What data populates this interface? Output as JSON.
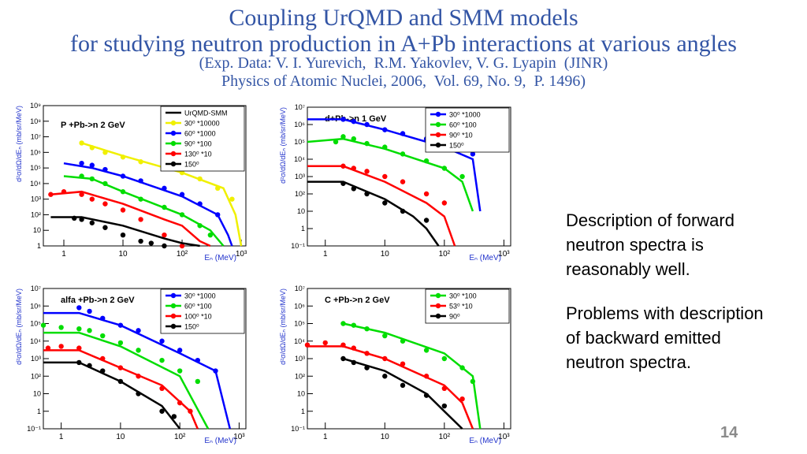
{
  "header": {
    "title": "Coupling UrQMD and SMM models",
    "subtitle": "for studying neutron production in A+Pb interactions at various angles",
    "reference_1": "(Exp. Data: V. I. Yurevich,  R.M. Yakovlev, V. G. Lyapin  (JINR)",
    "reference_2": "Physics of Atomic Nuclei, 2006,  Vol. 69, No. 9,  P. 1496)"
  },
  "chart_data": [
    {
      "type": "line",
      "annotation": "P +Pb->n  2 GeV",
      "x_label": "Eₙ (MeV)",
      "y_label": "d²σ/dΩ/dEₙ (mb/sr/MeV)",
      "log_x": true,
      "log_y": true,
      "legend": "upper right",
      "model_label": "UrQMD-SMM",
      "model_color": "#000000",
      "xlim": [
        0.45,
        1200
      ],
      "xticks": [
        1,
        10,
        {
          "value": 100,
          "label": "10²"
        },
        {
          "value": 1000,
          "label": "10³"
        }
      ],
      "ylim": [
        1,
        1000000000
      ],
      "yticks": [
        1,
        10,
        {
          "value": 100,
          "label": "10²"
        },
        {
          "value": 1000,
          "label": "10³"
        },
        {
          "value": 10000,
          "label": "10⁴"
        },
        {
          "value": 100000,
          "label": "10⁵"
        },
        {
          "value": 1000000,
          "label": "10⁶"
        },
        {
          "value": 10000000,
          "label": "10⁷"
        },
        {
          "value": 100000000,
          "label": "10⁸"
        },
        {
          "value": 1000000000,
          "label": "10⁹"
        }
      ],
      "series": [
        {
          "name": "30⁰ *10000",
          "color": "#f0f000",
          "x": [
            2,
            3,
            5,
            10,
            20,
            50,
            100,
            200,
            400,
            700
          ],
          "values": [
            4000000,
            2000000,
            1000000,
            500000,
            250000,
            100000,
            50000,
            20000,
            5000,
            1000
          ],
          "model": {
            "x": [
              2,
              10,
              100,
              500,
              800,
              1000
            ],
            "values": [
              4000000,
              600000,
              50000,
              5000,
              100,
              1
            ]
          }
        },
        {
          "name": "60⁰ *1000",
          "color": "#0000ff",
          "x": [
            2,
            3,
            5,
            10,
            20,
            50,
            100,
            200,
            400
          ],
          "values": [
            200000,
            150000,
            80000,
            30000,
            15000,
            5000,
            2000,
            500,
            100
          ],
          "model": {
            "x": [
              1,
              3,
              10,
              100,
              400,
              600,
              700
            ],
            "values": [
              200000,
              100000,
              30000,
              1500,
              100,
              5,
              1
            ]
          }
        },
        {
          "name": "90⁰ *100",
          "color": "#00dd00",
          "x": [
            2,
            3,
            5,
            10,
            20,
            50,
            100,
            200,
            300
          ],
          "values": [
            30000,
            20000,
            10000,
            3000,
            1000,
            300,
            100,
            20,
            5
          ],
          "model": {
            "x": [
              1,
              3,
              10,
              100,
              300,
              500
            ],
            "values": [
              30000,
              20000,
              3000,
              100,
              10,
              1
            ]
          }
        },
        {
          "name": "130⁰ *10",
          "color": "#ff0000",
          "x": [
            0.6,
            1,
            2,
            3,
            5,
            10,
            20,
            50,
            100
          ],
          "values": [
            2000,
            3000,
            2000,
            1000,
            500,
            200,
            50,
            5,
            1
          ],
          "model": {
            "x": [
              0.6,
              2,
              10,
              50,
              100,
              200,
              300
            ],
            "values": [
              2000,
              3000,
              500,
              50,
              20,
              2,
              1
            ]
          }
        },
        {
          "name": "150⁰",
          "color": "#000000",
          "x": [
            1.5,
            2,
            3,
            5,
            10,
            20,
            30,
            50
          ],
          "values": [
            60,
            50,
            30,
            15,
            5,
            2,
            1.5,
            1
          ],
          "model": {
            "x": [
              0.6,
              2,
              10,
              50,
              100,
              200
            ],
            "values": [
              70,
              70,
              20,
              3,
              1.5,
              1
            ]
          }
        }
      ]
    },
    {
      "type": "line",
      "annotation": "d+Pb->n  1 GeV",
      "x_label": "Eₙ (MeV)",
      "y_label": "d²σ/dΩ/dEₙ (mb/sr/MeV)",
      "log_x": true,
      "log_y": true,
      "legend": "upper right",
      "xlim": [
        0.5,
        1300
      ],
      "xticks": [
        1,
        10,
        {
          "value": 100,
          "label": "10²"
        },
        {
          "value": 1000,
          "label": "10³"
        }
      ],
      "ylim": [
        0.1,
        10000000
      ],
      "yticks": [
        {
          "value": 0.1,
          "label": "10⁻¹"
        },
        1,
        10,
        {
          "value": 100,
          "label": "10²"
        },
        {
          "value": 1000,
          "label": "10³"
        },
        {
          "value": 10000,
          "label": "10⁴"
        },
        {
          "value": 100000,
          "label": "10⁵"
        },
        {
          "value": 1000000,
          "label": "10⁶"
        },
        {
          "value": 10000000,
          "label": "10⁷"
        }
      ],
      "series": [
        {
          "name": "30⁰ *1000",
          "color": "#0000ff",
          "x": [
            2,
            3,
            5,
            10,
            20,
            50,
            100,
            200,
            300
          ],
          "values": [
            2000000,
            1500000,
            1000000,
            500000,
            300000,
            150000,
            80000,
            40000,
            20000
          ],
          "model": {
            "x": [
              0.5,
              2,
              10,
              100,
              300,
              400
            ],
            "values": [
              2000000,
              2000000,
              500000,
              50000,
              10000,
              10
            ]
          }
        },
        {
          "name": "60⁰ *100",
          "color": "#00dd00",
          "x": [
            1.5,
            2,
            3,
            5,
            10,
            20,
            50,
            100,
            200
          ],
          "values": [
            100000,
            200000,
            150000,
            80000,
            50000,
            20000,
            8000,
            3000,
            1000
          ],
          "model": {
            "x": [
              0.5,
              2,
              10,
              100,
              200,
              300
            ],
            "values": [
              100000,
              150000,
              40000,
              3000,
              500,
              10
            ]
          }
        },
        {
          "name": "90⁰ *10",
          "color": "#ff0000",
          "x": [
            2,
            3,
            5,
            10,
            20,
            50,
            100
          ],
          "values": [
            4000,
            3000,
            2000,
            1000,
            500,
            100,
            30
          ],
          "model": {
            "x": [
              0.5,
              2,
              10,
              50,
              100,
              150
            ],
            "values": [
              4000,
              4000,
              500,
              30,
              5,
              0.1
            ]
          }
        },
        {
          "name": "150⁰",
          "color": "#000000",
          "x": [
            2,
            3,
            5,
            10,
            20,
            50
          ],
          "values": [
            400,
            200,
            100,
            30,
            10,
            3
          ],
          "model": {
            "x": [
              0.5,
              2,
              10,
              30,
              50,
              80
            ],
            "values": [
              500,
              500,
              50,
              5,
              1,
              0.1
            ]
          }
        }
      ]
    },
    {
      "type": "line",
      "annotation": "alfa +Pb->n  2 GeV",
      "x_label": "Eₙ (MeV)",
      "y_label": "d²σ/dΩ/dEₙ (mb/sr/MeV)",
      "log_x": true,
      "log_y": true,
      "legend": "upper right",
      "xlim": [
        0.5,
        1300
      ],
      "xticks": [
        1,
        10,
        {
          "value": 100,
          "label": "10²"
        },
        {
          "value": 1000,
          "label": "10³"
        }
      ],
      "ylim": [
        0.1,
        10000000
      ],
      "yticks": [
        {
          "value": 0.1,
          "label": "10⁻¹"
        },
        1,
        10,
        {
          "value": 100,
          "label": "10²"
        },
        {
          "value": 1000,
          "label": "10³"
        },
        {
          "value": 10000,
          "label": "10⁴"
        },
        {
          "value": 100000,
          "label": "10⁵"
        },
        {
          "value": 1000000,
          "label": "10⁶"
        },
        {
          "value": 10000000,
          "label": "10⁷"
        }
      ],
      "series": [
        {
          "name": "30⁰ *1000",
          "color": "#0000ff",
          "x": [
            2,
            3,
            5,
            10,
            20,
            50,
            100,
            200,
            400
          ],
          "values": [
            800000,
            500000,
            200000,
            80000,
            40000,
            10000,
            3000,
            800,
            200
          ],
          "model": {
            "x": [
              0.5,
              2,
              10,
              100,
              400,
              700
            ],
            "values": [
              400000,
              400000,
              80000,
              2000,
              200,
              0.1
            ]
          }
        },
        {
          "name": "60⁰ *100",
          "color": "#00dd00",
          "x": [
            0.5,
            1,
            2,
            3,
            5,
            10,
            20,
            50,
            100,
            200
          ],
          "values": [
            80000,
            60000,
            50000,
            40000,
            20000,
            8000,
            3000,
            800,
            200,
            50
          ],
          "model": {
            "x": [
              0.5,
              2,
              10,
              100,
              300
            ],
            "values": [
              30000,
              30000,
              5000,
              100,
              0.1
            ]
          }
        },
        {
          "name": "100⁰ *10",
          "color": "#ff0000",
          "x": [
            0.6,
            1,
            2,
            5,
            10,
            20,
            50,
            100,
            150
          ],
          "values": [
            4000,
            5000,
            4000,
            1000,
            300,
            100,
            20,
            3,
            1
          ],
          "model": {
            "x": [
              0.5,
              2,
              10,
              50,
              150,
              200
            ],
            "values": [
              3000,
              3000,
              300,
              30,
              1,
              0.1
            ]
          }
        },
        {
          "name": "150⁰",
          "color": "#000000",
          "x": [
            2,
            3,
            5,
            10,
            20,
            50,
            80
          ],
          "values": [
            600,
            400,
            200,
            50,
            10,
            1,
            0.5
          ],
          "model": {
            "x": [
              0.5,
              2,
              10,
              50,
              100
            ],
            "values": [
              600,
              600,
              50,
              2,
              0.1
            ]
          }
        }
      ]
    },
    {
      "type": "line",
      "annotation": "C +Pb->n  2 GeV",
      "x_label": "Eₙ (MeV)",
      "y_label": "d²σ/dΩ/dEₙ (mb/sr/MeV)",
      "log_x": true,
      "log_y": true,
      "legend": "upper right",
      "xlim": [
        0.5,
        1300
      ],
      "xticks": [
        1,
        10,
        {
          "value": 100,
          "label": "10²"
        },
        {
          "value": 1000,
          "label": "10³"
        }
      ],
      "ylim": [
        0.1,
        10000000
      ],
      "yticks": [
        {
          "value": 0.1,
          "label": "10⁻¹"
        },
        1,
        10,
        {
          "value": 100,
          "label": "10²"
        },
        {
          "value": 1000,
          "label": "10³"
        },
        {
          "value": 10000,
          "label": "10⁴"
        },
        {
          "value": 100000,
          "label": "10⁵"
        },
        {
          "value": 1000000,
          "label": "10⁶"
        },
        {
          "value": 10000000,
          "label": "10⁷"
        }
      ],
      "series": [
        {
          "name": "30⁰ *100",
          "color": "#00dd00",
          "x": [
            2,
            3,
            5,
            10,
            20,
            50,
            100,
            200,
            300
          ],
          "values": [
            100000,
            80000,
            50000,
            20000,
            10000,
            3000,
            1000,
            300,
            50
          ],
          "model": {
            "x": [
              2,
              10,
              100,
              300,
              400
            ],
            "values": [
              100000,
              30000,
              2000,
              100,
              0.1
            ]
          }
        },
        {
          "name": "53⁰ *10",
          "color": "#ff0000",
          "x": [
            0.5,
            1,
            2,
            3,
            5,
            10,
            20,
            50,
            100,
            200
          ],
          "values": [
            6000,
            8000,
            6000,
            4000,
            2000,
            1000,
            500,
            100,
            20,
            5
          ],
          "model": {
            "x": [
              0.5,
              2,
              10,
              100,
              200,
              300
            ],
            "values": [
              5000,
              5000,
              1000,
              30,
              3,
              0.1
            ]
          }
        },
        {
          "name": "90⁰",
          "color": "#000000",
          "x": [
            2,
            3,
            5,
            10,
            20,
            50,
            100
          ],
          "values": [
            1000,
            600,
            300,
            100,
            30,
            8,
            2
          ],
          "model": {
            "x": [
              2,
              10,
              50,
              100,
              200
            ],
            "values": [
              1000,
              200,
              10,
              1,
              0.1
            ]
          }
        }
      ]
    }
  ],
  "notes": [
    "Description of forward neutron spectra is reasonably well.",
    "Problems with description of backward emitted neutron spectra."
  ],
  "page_number": "14"
}
